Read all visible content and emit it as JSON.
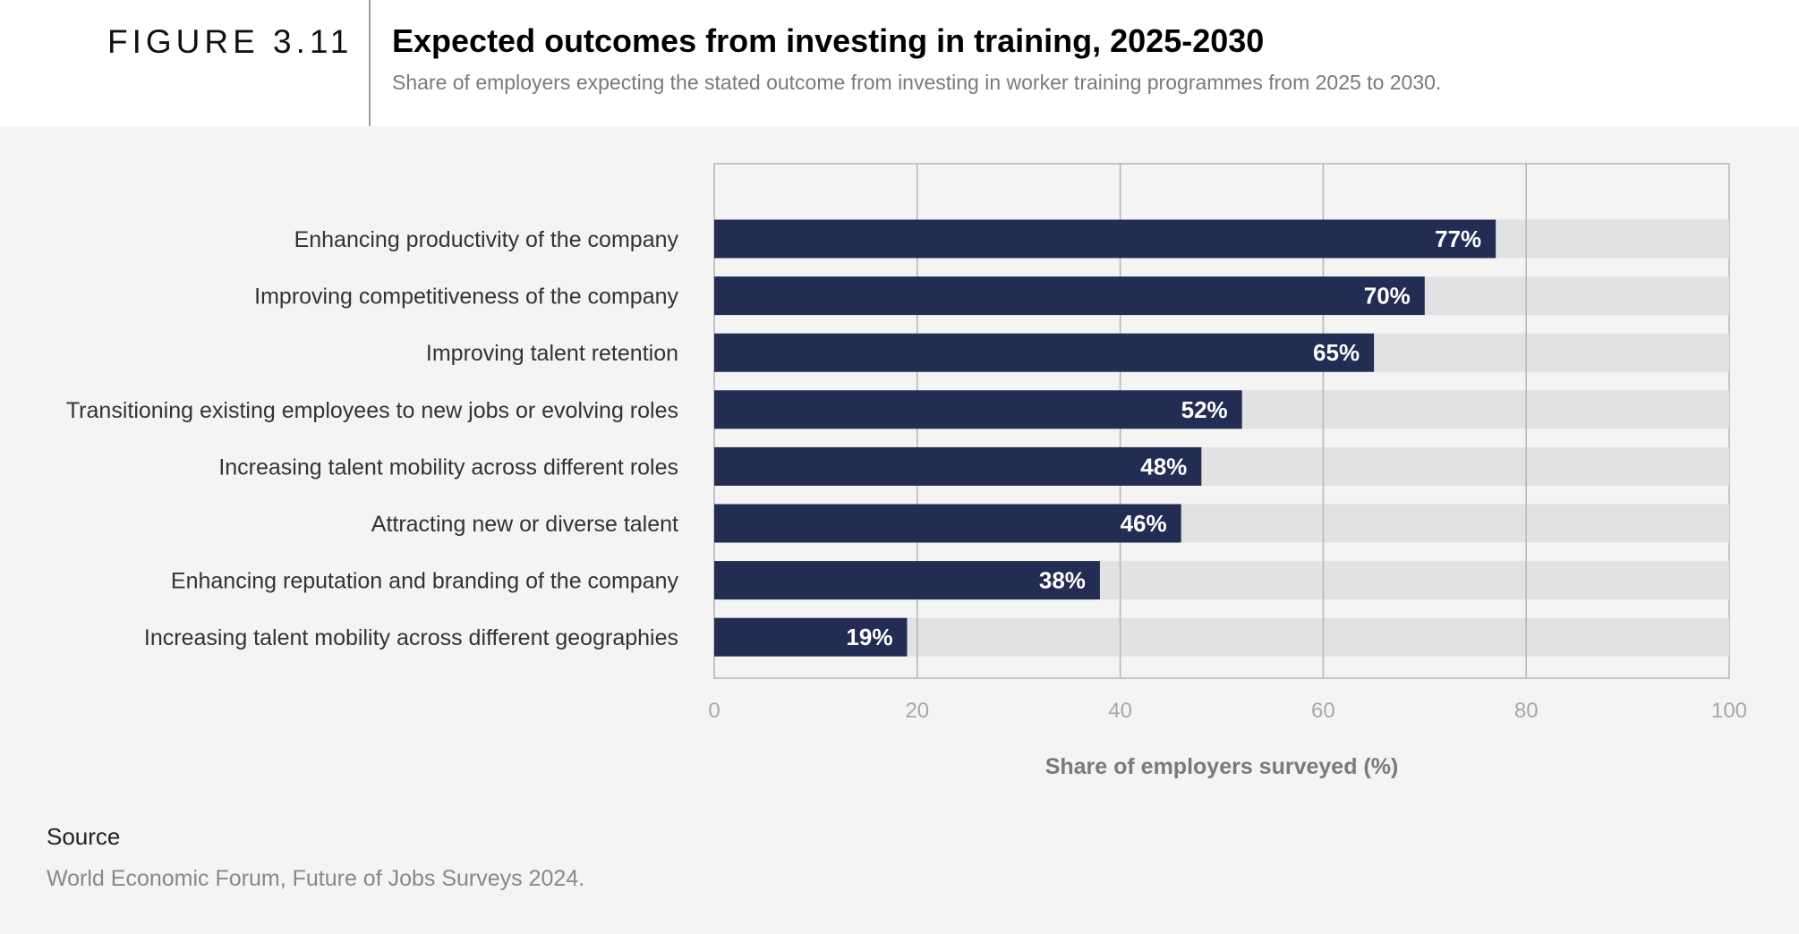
{
  "header": {
    "figure_label": "FIGURE 3.11",
    "title": "Expected outcomes from investing in training, 2025-2030",
    "subtitle": "Share of employers expecting the stated outcome from investing in worker training programmes from 2025 to 2030."
  },
  "chart_data": {
    "type": "bar",
    "orientation": "horizontal",
    "categories": [
      "Enhancing productivity of the company",
      "Improving competitiveness of the company",
      "Improving talent retention",
      "Transitioning existing employees to new jobs or evolving roles",
      "Increasing talent mobility across different roles",
      "Attracting new or diverse talent",
      "Enhancing reputation and branding of the company",
      "Increasing talent mobility across different geographies"
    ],
    "values": [
      77,
      70,
      65,
      52,
      48,
      46,
      38,
      19
    ],
    "data_labels": [
      "77%",
      "70%",
      "65%",
      "52%",
      "48%",
      "46%",
      "38%",
      "19%"
    ],
    "xlabel": "Share of employers surveyed (%)",
    "xlim": [
      0,
      100
    ],
    "xticks": [
      0,
      20,
      40,
      60,
      80,
      100
    ],
    "grid": true,
    "colors": {
      "bar": "#232c52",
      "track": "#e2e2e5",
      "grid": "#b5b5b5",
      "tick": "#a8a8a8",
      "xlabel": "#7a7a7a"
    }
  },
  "source": {
    "label": "Source",
    "text": "World Economic Forum, Future of Jobs Surveys 2024."
  }
}
